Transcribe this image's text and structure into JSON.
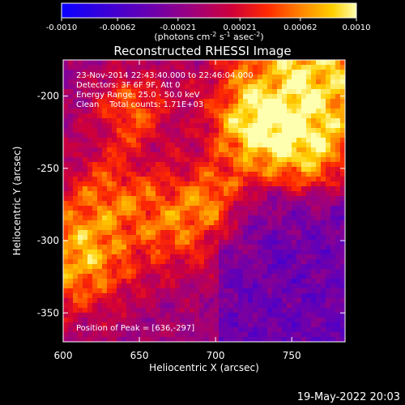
{
  "chart_data": {
    "type": "heatmap",
    "title": "Reconstructed RHESSI Image",
    "xlabel": "Heliocentric X (arcsec)",
    "ylabel": "Heliocentric Y (arcsec)",
    "xlim": [
      600,
      785
    ],
    "ylim": [
      -370,
      -175
    ],
    "xticks": [
      600,
      650,
      700,
      750
    ],
    "yticks": [
      -200,
      -250,
      -300,
      -350
    ],
    "colorbar": {
      "min": -0.001,
      "max": 0.001,
      "ticks": [
        "-0.0010",
        "-0.00062",
        "-0.00021",
        "0.00021",
        "0.00062",
        "0.0010"
      ],
      "label_base": "(photons cm",
      "label_sup1": "-2",
      "label_mid": " s",
      "label_sup2": "-1",
      "label_mid2": " asec",
      "label_sup3": "-2",
      "label_end": ")"
    },
    "annotations": [
      "23-Nov-2014 22:43:40.000 to 22:46:04.000",
      "Detectors: 3F 6F 9F, Att 0",
      "Energy Range: 25.0 - 50.0 keV",
      "Clean    Total counts: 1.71E+03"
    ],
    "peak_label": "Position of Peak = [636,-297]",
    "footer_date": "19-May-2022 20:03",
    "colors": {
      "colormap": [
        "#0a00ff",
        "#3a00d8",
        "#6a00b0",
        "#a0007a",
        "#d00038",
        "#ff2a00",
        "#ff8a00",
        "#ffd000",
        "#ffffb0"
      ]
    }
  }
}
